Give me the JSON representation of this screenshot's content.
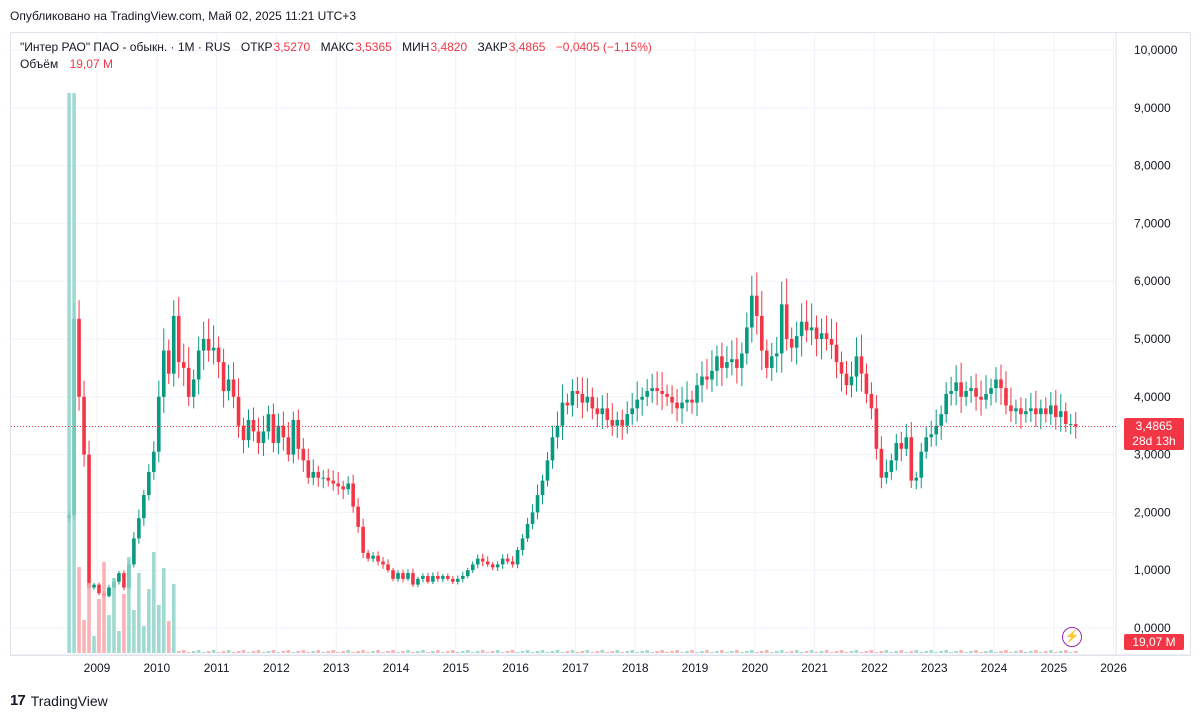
{
  "header": {
    "published": "Опубликовано на TradingView.com, Май 02, 2025 11:21 UTC+3"
  },
  "legend": {
    "symbol": "\"Интер РАО\" ПАО - обыкн. · 1M · RUS",
    "open_label": "ОТКР",
    "open": "3,5270",
    "high_label": "МАКС",
    "high": "3,5365",
    "low_label": "МИН",
    "low": "3,4820",
    "close_label": "ЗАКР",
    "close": "3,4865",
    "change": "−0,0405 (−1,15%)",
    "volume_label": "Объём",
    "volume": "19,07 M"
  },
  "price_tag": {
    "price": "3,4865",
    "countdown": "28d 13h"
  },
  "volume_tag": "19,07 M",
  "footer": {
    "brand": "TradingView",
    "logo_text": "17"
  },
  "colors": {
    "up": "#089981",
    "down": "#f23645",
    "up_volume": "#8fd4c8",
    "down_volume": "#f8a4a8",
    "grid": "#f0f3fa"
  },
  "chart_data": {
    "type": "candlestick",
    "interval": "1M",
    "y_ticks": [
      "10,0000",
      "9,0000",
      "8,0000",
      "7,0000",
      "6,0000",
      "5,0000",
      "4,0000",
      "3,0000",
      "2,0000",
      "1,0000",
      "0,0000"
    ],
    "x_ticks": [
      "2009",
      "2010",
      "2011",
      "2012",
      "2013",
      "2014",
      "2015",
      "2016",
      "2017",
      "2018",
      "2019",
      "2020",
      "2021",
      "2022",
      "2023",
      "2024",
      "2025",
      "2026"
    ],
    "ylim": [
      0,
      10
    ],
    "last_price": 3.4865,
    "series": [
      {
        "name": "price_close_approx",
        "points": [
          [
            "2008-07",
            1.95
          ],
          [
            "2008-08",
            5.35
          ],
          [
            "2008-09",
            4.0
          ],
          [
            "2008-10",
            3.0
          ],
          [
            "2008-11",
            0.7
          ],
          [
            "2008-12",
            0.75
          ],
          [
            "2009-01",
            0.6
          ],
          [
            "2009-02",
            0.55
          ],
          [
            "2009-03",
            0.7
          ],
          [
            "2009-04",
            0.8
          ],
          [
            "2009-05",
            0.95
          ],
          [
            "2009-06",
            0.7
          ],
          [
            "2009-07",
            1.1
          ],
          [
            "2009-08",
            1.55
          ],
          [
            "2009-09",
            1.9
          ],
          [
            "2009-10",
            2.3
          ],
          [
            "2009-11",
            2.7
          ],
          [
            "2009-12",
            3.05
          ],
          [
            "2010-01",
            4.0
          ],
          [
            "2010-02",
            4.8
          ],
          [
            "2010-03",
            4.4
          ],
          [
            "2010-04",
            5.4
          ],
          [
            "2010-05",
            4.6
          ],
          [
            "2010-06",
            4.5
          ],
          [
            "2010-07",
            4.0
          ],
          [
            "2010-08",
            4.3
          ],
          [
            "2010-09",
            4.8
          ],
          [
            "2010-10",
            5.0
          ],
          [
            "2010-11",
            4.8
          ],
          [
            "2010-12",
            4.85
          ],
          [
            "2011-01",
            4.6
          ],
          [
            "2011-02",
            4.1
          ],
          [
            "2011-03",
            4.3
          ],
          [
            "2011-04",
            4.0
          ],
          [
            "2011-05",
            3.5
          ],
          [
            "2011-06",
            3.25
          ],
          [
            "2011-07",
            3.6
          ],
          [
            "2011-08",
            3.4
          ],
          [
            "2011-09",
            3.2
          ],
          [
            "2011-10",
            3.4
          ],
          [
            "2011-11",
            3.7
          ],
          [
            "2011-12",
            3.2
          ],
          [
            "2012-01",
            3.5
          ],
          [
            "2012-02",
            3.3
          ],
          [
            "2012-03",
            3.0
          ],
          [
            "2012-04",
            3.6
          ],
          [
            "2012-05",
            3.1
          ],
          [
            "2012-06",
            2.9
          ],
          [
            "2012-07",
            2.6
          ],
          [
            "2012-08",
            2.7
          ],
          [
            "2012-09",
            2.6
          ],
          [
            "2012-10",
            2.6
          ],
          [
            "2012-11",
            2.55
          ],
          [
            "2012-12",
            2.5
          ],
          [
            "2013-01",
            2.45
          ],
          [
            "2013-02",
            2.4
          ],
          [
            "2013-03",
            2.5
          ],
          [
            "2013-04",
            2.1
          ],
          [
            "2013-05",
            1.75
          ],
          [
            "2013-06",
            1.3
          ],
          [
            "2013-07",
            1.2
          ],
          [
            "2013-08",
            1.25
          ],
          [
            "2013-09",
            1.15
          ],
          [
            "2013-10",
            1.1
          ],
          [
            "2013-11",
            1.0
          ],
          [
            "2013-12",
            0.85
          ],
          [
            "2014-01",
            0.95
          ],
          [
            "2014-02",
            0.85
          ],
          [
            "2014-03",
            0.95
          ],
          [
            "2014-04",
            0.75
          ],
          [
            "2014-05",
            0.85
          ],
          [
            "2014-06",
            0.9
          ],
          [
            "2014-07",
            0.8
          ],
          [
            "2014-08",
            0.9
          ],
          [
            "2014-09",
            0.85
          ],
          [
            "2014-10",
            0.9
          ],
          [
            "2014-11",
            0.85
          ],
          [
            "2014-12",
            0.8
          ],
          [
            "2015-01",
            0.85
          ],
          [
            "2015-02",
            0.9
          ],
          [
            "2015-03",
            1.0
          ],
          [
            "2015-04",
            1.1
          ],
          [
            "2015-05",
            1.2
          ],
          [
            "2015-06",
            1.15
          ],
          [
            "2015-07",
            1.1
          ],
          [
            "2015-08",
            1.05
          ],
          [
            "2015-09",
            1.1
          ],
          [
            "2015-10",
            1.2
          ],
          [
            "2015-11",
            1.15
          ],
          [
            "2015-12",
            1.1
          ],
          [
            "2016-01",
            1.35
          ],
          [
            "2016-02",
            1.55
          ],
          [
            "2016-03",
            1.8
          ],
          [
            "2016-04",
            2.0
          ],
          [
            "2016-05",
            2.3
          ],
          [
            "2016-06",
            2.55
          ],
          [
            "2016-07",
            2.9
          ],
          [
            "2016-08",
            3.3
          ],
          [
            "2016-09",
            3.5
          ],
          [
            "2016-10",
            3.9
          ],
          [
            "2016-11",
            3.85
          ],
          [
            "2016-12",
            4.1
          ],
          [
            "2017-01",
            4.05
          ],
          [
            "2017-02",
            3.9
          ],
          [
            "2017-03",
            4.0
          ],
          [
            "2017-04",
            3.8
          ],
          [
            "2017-05",
            3.7
          ],
          [
            "2017-06",
            3.8
          ],
          [
            "2017-07",
            3.6
          ],
          [
            "2017-08",
            3.5
          ],
          [
            "2017-09",
            3.6
          ],
          [
            "2017-10",
            3.5
          ],
          [
            "2017-11",
            3.7
          ],
          [
            "2017-12",
            3.8
          ],
          [
            "2018-01",
            3.95
          ],
          [
            "2018-02",
            4.0
          ],
          [
            "2018-03",
            4.1
          ],
          [
            "2018-04",
            4.15
          ],
          [
            "2018-05",
            4.1
          ],
          [
            "2018-06",
            4.05
          ],
          [
            "2018-07",
            4.0
          ],
          [
            "2018-08",
            3.9
          ],
          [
            "2018-09",
            3.8
          ],
          [
            "2018-10",
            3.9
          ],
          [
            "2018-11",
            3.95
          ],
          [
            "2018-12",
            3.9
          ],
          [
            "2019-01",
            4.2
          ],
          [
            "2019-02",
            4.35
          ],
          [
            "2019-03",
            4.3
          ],
          [
            "2019-04",
            4.45
          ],
          [
            "2019-05",
            4.7
          ],
          [
            "2019-06",
            4.5
          ],
          [
            "2019-07",
            4.6
          ],
          [
            "2019-08",
            4.65
          ],
          [
            "2019-09",
            4.5
          ],
          [
            "2019-10",
            4.75
          ],
          [
            "2019-11",
            5.2
          ],
          [
            "2019-12",
            5.75
          ],
          [
            "2020-01",
            5.4
          ],
          [
            "2020-02",
            4.8
          ],
          [
            "2020-03",
            4.5
          ],
          [
            "2020-04",
            4.7
          ],
          [
            "2020-05",
            4.75
          ],
          [
            "2020-06",
            5.6
          ],
          [
            "2020-07",
            5.0
          ],
          [
            "2020-08",
            4.85
          ],
          [
            "2020-09",
            5.05
          ],
          [
            "2020-10",
            5.3
          ],
          [
            "2020-11",
            5.15
          ],
          [
            "2020-12",
            5.2
          ],
          [
            "2021-01",
            5.0
          ],
          [
            "2021-02",
            5.1
          ],
          [
            "2021-03",
            5.0
          ],
          [
            "2021-04",
            4.9
          ],
          [
            "2021-05",
            4.6
          ],
          [
            "2021-06",
            4.4
          ],
          [
            "2021-07",
            4.2
          ],
          [
            "2021-08",
            4.35
          ],
          [
            "2021-09",
            4.7
          ],
          [
            "2021-10",
            4.4
          ],
          [
            "2021-11",
            4.05
          ],
          [
            "2021-12",
            3.8
          ],
          [
            "2022-01",
            3.1
          ],
          [
            "2022-02",
            2.6
          ],
          [
            "2022-03",
            2.7
          ],
          [
            "2022-04",
            2.9
          ],
          [
            "2022-05",
            3.2
          ],
          [
            "2022-06",
            3.1
          ],
          [
            "2022-07",
            3.3
          ],
          [
            "2022-08",
            2.55
          ],
          [
            "2022-09",
            2.6
          ],
          [
            "2022-10",
            3.05
          ],
          [
            "2022-11",
            3.3
          ],
          [
            "2022-12",
            3.35
          ],
          [
            "2023-01",
            3.5
          ],
          [
            "2023-02",
            3.7
          ],
          [
            "2023-03",
            4.05
          ],
          [
            "2023-04",
            4.1
          ],
          [
            "2023-05",
            4.25
          ],
          [
            "2023-06",
            4.0
          ],
          [
            "2023-07",
            4.1
          ],
          [
            "2023-08",
            4.15
          ],
          [
            "2023-09",
            4.0
          ],
          [
            "2023-10",
            3.95
          ],
          [
            "2023-11",
            4.05
          ],
          [
            "2023-12",
            4.15
          ],
          [
            "2024-01",
            4.3
          ],
          [
            "2024-02",
            4.15
          ],
          [
            "2024-03",
            3.85
          ],
          [
            "2024-04",
            3.75
          ],
          [
            "2024-05",
            3.8
          ],
          [
            "2024-06",
            3.7
          ],
          [
            "2024-07",
            3.75
          ],
          [
            "2024-08",
            3.8
          ],
          [
            "2024-09",
            3.7
          ],
          [
            "2024-10",
            3.8
          ],
          [
            "2024-11",
            3.7
          ],
          [
            "2024-12",
            3.85
          ],
          [
            "2025-01",
            3.65
          ],
          [
            "2025-02",
            3.75
          ],
          [
            "2025-03",
            3.53
          ],
          [
            "2025-04",
            3.527
          ],
          [
            "2025-05",
            3.4865
          ]
        ]
      }
    ]
  }
}
